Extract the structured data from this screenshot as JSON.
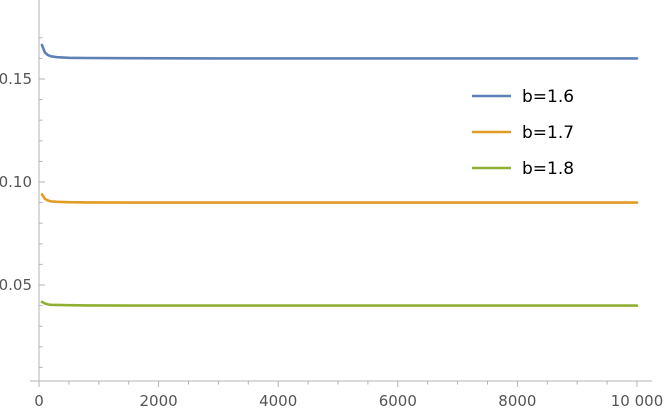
{
  "chart_data": {
    "type": "line",
    "title": "",
    "xlabel": "",
    "ylabel": "",
    "xlim": [
      0,
      10000
    ],
    "ylim": [
      0,
      0.175
    ],
    "x_ticks": [
      0,
      2000,
      4000,
      6000,
      8000,
      10000
    ],
    "x_tick_labels": [
      "0",
      "2000",
      "4000",
      "6000",
      "8000",
      "10 000"
    ],
    "y_ticks": [
      0.05,
      0.1,
      0.15
    ],
    "y_tick_labels": [
      "0.05",
      "0.10",
      "0.15"
    ],
    "grid": false,
    "legend_position": "right",
    "series": [
      {
        "name": "b=1.6",
        "color": "#5E81B5",
        "x": [
          50,
          100,
          150,
          200,
          300,
          500,
          800,
          1500,
          3000,
          6000,
          10000
        ],
        "values": [
          0.1665,
          0.1628,
          0.1616,
          0.161,
          0.1606,
          0.1603,
          0.1602,
          0.1601,
          0.16,
          0.16,
          0.16
        ]
      },
      {
        "name": "b=1.7",
        "color": "#E19C24",
        "x": [
          50,
          100,
          150,
          200,
          300,
          500,
          800,
          1500,
          3000,
          6000,
          10000
        ],
        "values": [
          0.094,
          0.0918,
          0.091,
          0.0906,
          0.0904,
          0.0902,
          0.0901,
          0.09,
          0.09,
          0.09,
          0.09
        ]
      },
      {
        "name": "b=1.8",
        "color": "#8FB032",
        "x": [
          50,
          100,
          150,
          200,
          300,
          500,
          800,
          1500,
          3000,
          6000,
          10000
        ],
        "values": [
          0.0418,
          0.041,
          0.0406,
          0.0404,
          0.0403,
          0.0402,
          0.0401,
          0.04,
          0.04,
          0.04,
          0.04
        ]
      }
    ]
  }
}
